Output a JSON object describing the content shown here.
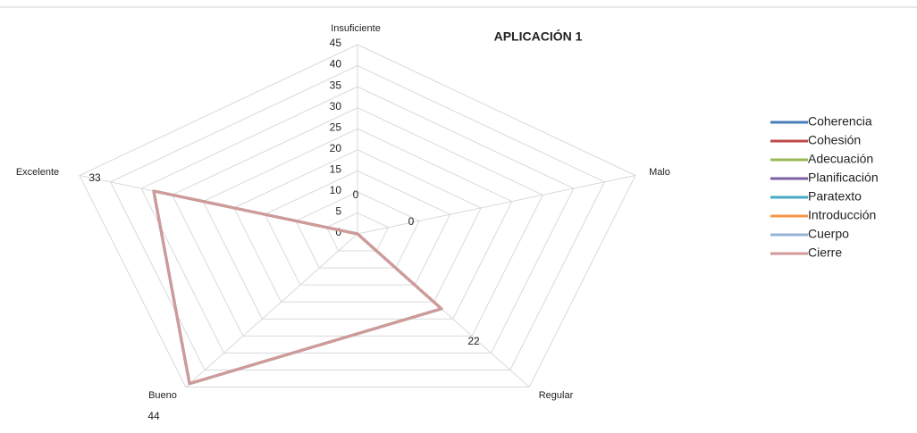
{
  "chart_data": {
    "type": "radar",
    "title": "APLICACIÓN 1",
    "categories": [
      "Insuficiente",
      "Malo",
      "Regular",
      "Bueno",
      "Excelente"
    ],
    "rlim": [
      0,
      45
    ],
    "rticks": [
      0,
      5,
      10,
      15,
      20,
      25,
      30,
      35,
      40,
      45
    ],
    "grid": true,
    "legend": "right",
    "series": [
      {
        "name": "Coherencia",
        "color": "#4a7ebb",
        "values": [
          0,
          0,
          22,
          44,
          33
        ]
      },
      {
        "name": "Cohesión",
        "color": "#be4b48",
        "values": [
          0,
          0,
          22,
          44,
          33
        ]
      },
      {
        "name": "Adecuación",
        "color": "#98b954",
        "values": [
          0,
          0,
          22,
          44,
          33
        ]
      },
      {
        "name": "Planificación",
        "color": "#7d60a0",
        "values": [
          0,
          0,
          22,
          44,
          33
        ]
      },
      {
        "name": "Paratexto",
        "color": "#46aac5",
        "values": [
          0,
          0,
          22,
          44,
          33
        ]
      },
      {
        "name": "Introducción",
        "color": "#f79646",
        "values": [
          0,
          0,
          22,
          44,
          33
        ]
      },
      {
        "name": "Cuerpo",
        "color": "#95b3d7",
        "values": [
          0,
          0,
          22,
          44,
          33
        ]
      },
      {
        "name": "Cierre",
        "color": "#d19a98",
        "values": [
          0,
          0,
          22,
          44,
          33
        ],
        "data_labels": true
      }
    ]
  }
}
